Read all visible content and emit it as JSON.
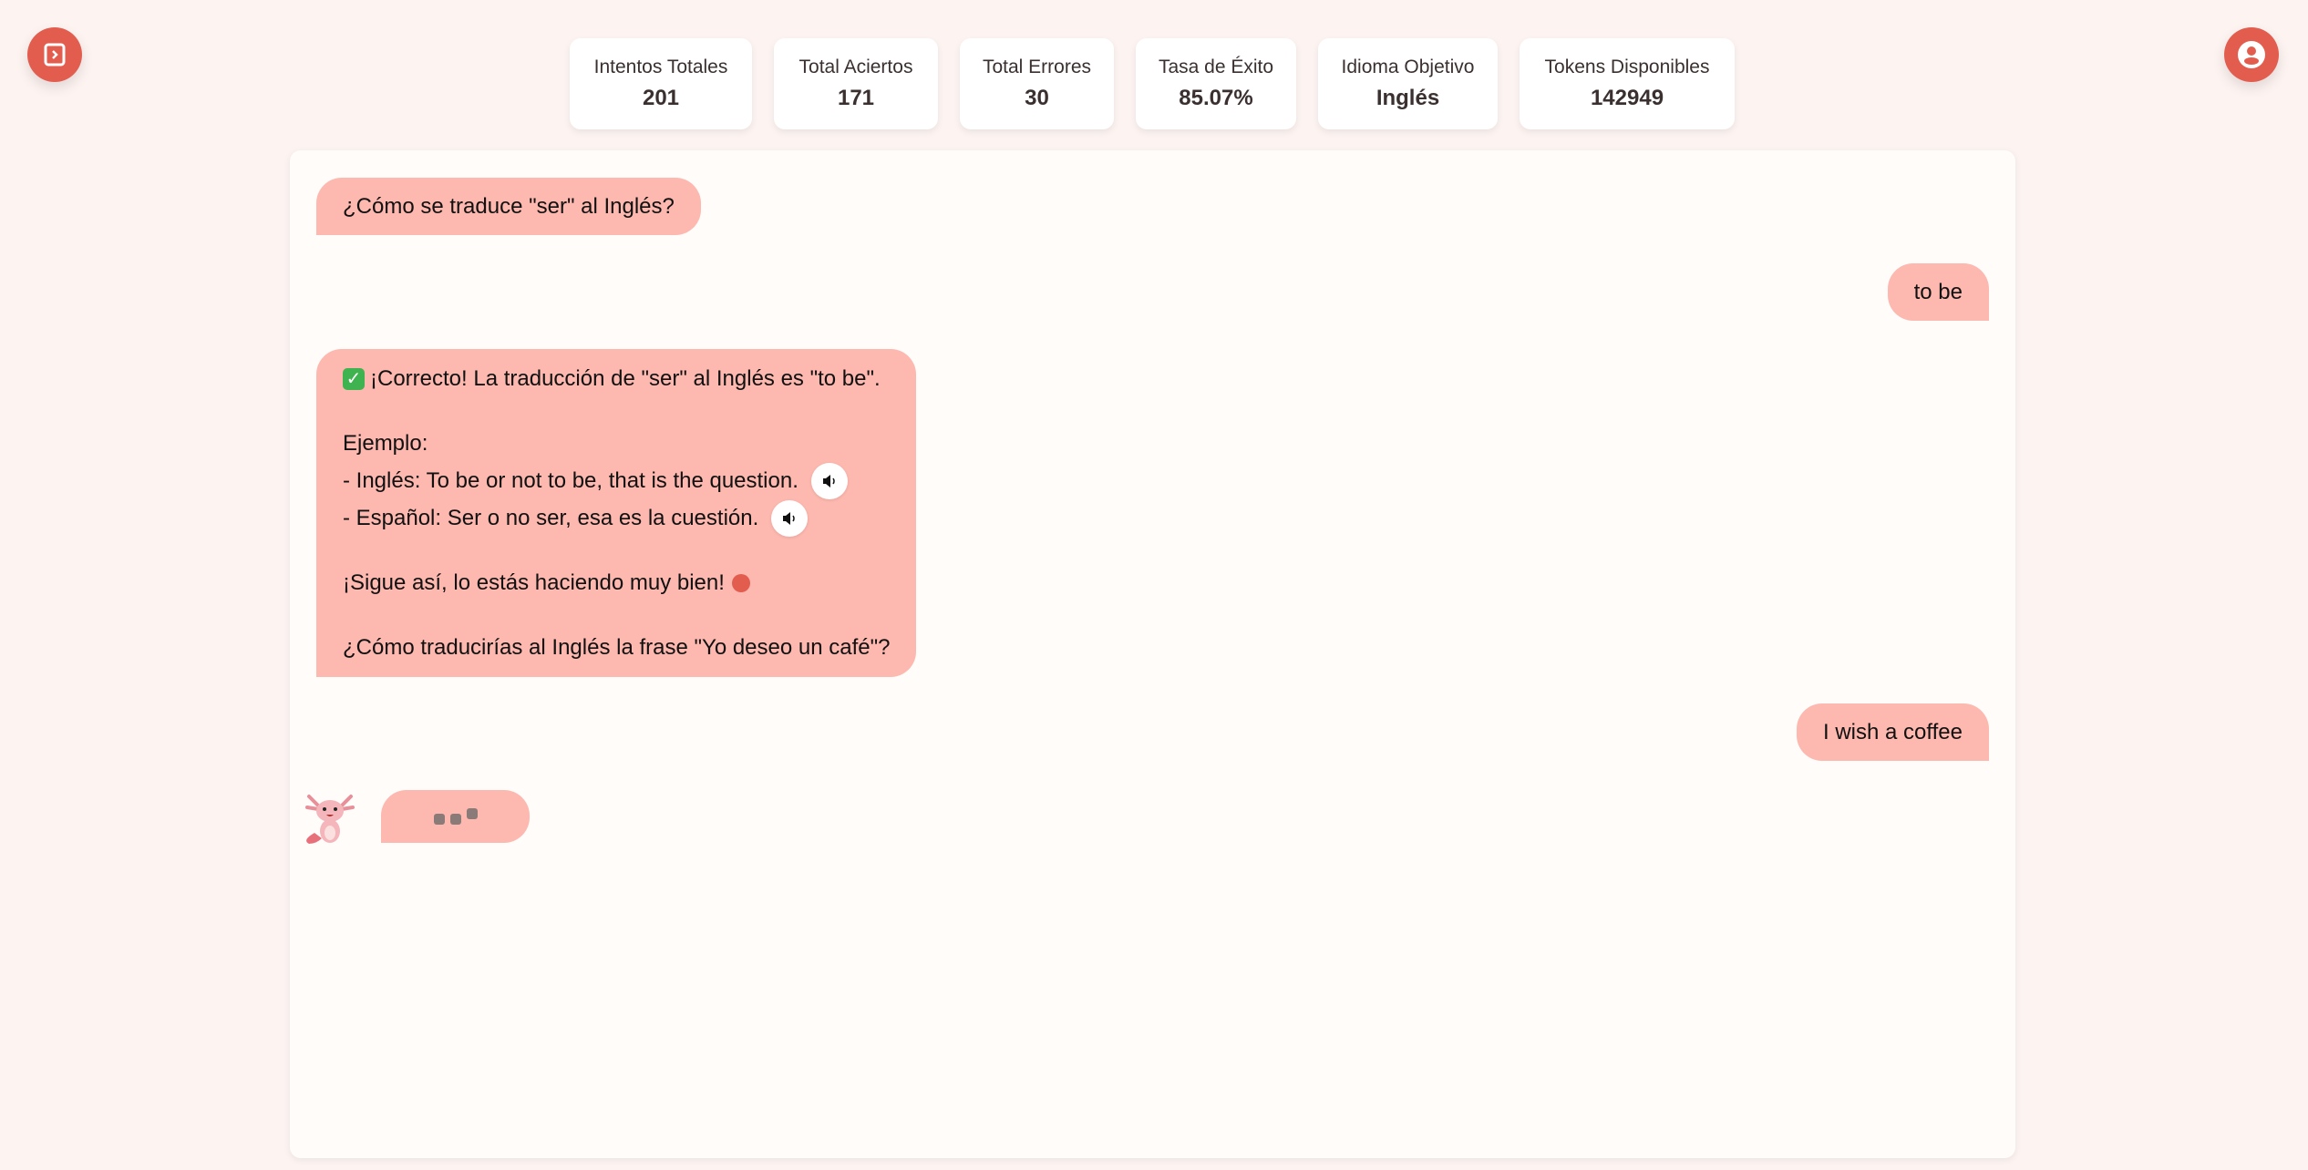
{
  "colors": {
    "accent": "#e35d4f",
    "bubble": "#fdb8af",
    "background": "#fdf4f2"
  },
  "stats": [
    {
      "label": "Intentos Totales",
      "value": "201"
    },
    {
      "label": "Total Aciertos",
      "value": "171"
    },
    {
      "label": "Total Errores",
      "value": "30"
    },
    {
      "label": "Tasa de Éxito",
      "value": "85.07%"
    },
    {
      "label": "Idioma Objetivo",
      "value": "Inglés"
    },
    {
      "label": "Tokens Disponibles",
      "value": "142949"
    }
  ],
  "chat": {
    "m1": "¿Cómo se traduce \"ser\" al Inglés?",
    "m2": "to be",
    "m3": {
      "line1": "¡Correcto! La traducción de \"ser\" al Inglés es \"to be\".",
      "line2": "Ejemplo:",
      "line3": "- Inglés: To be or not to be, that is the question.",
      "line4": "- Español: Ser o no ser, esa es la cuestión.",
      "line5": "¡Sigue así, lo estás haciendo muy bien!",
      "line6": "¿Cómo traducirías al Inglés la frase \"Yo deseo un café\"?"
    },
    "m4": "I wish a coffee"
  },
  "icons": {
    "sidebar": "sidebar-toggle-icon",
    "profile": "user-circle-icon",
    "speaker": "speaker-icon",
    "avatar": "axolotl-mascot"
  }
}
